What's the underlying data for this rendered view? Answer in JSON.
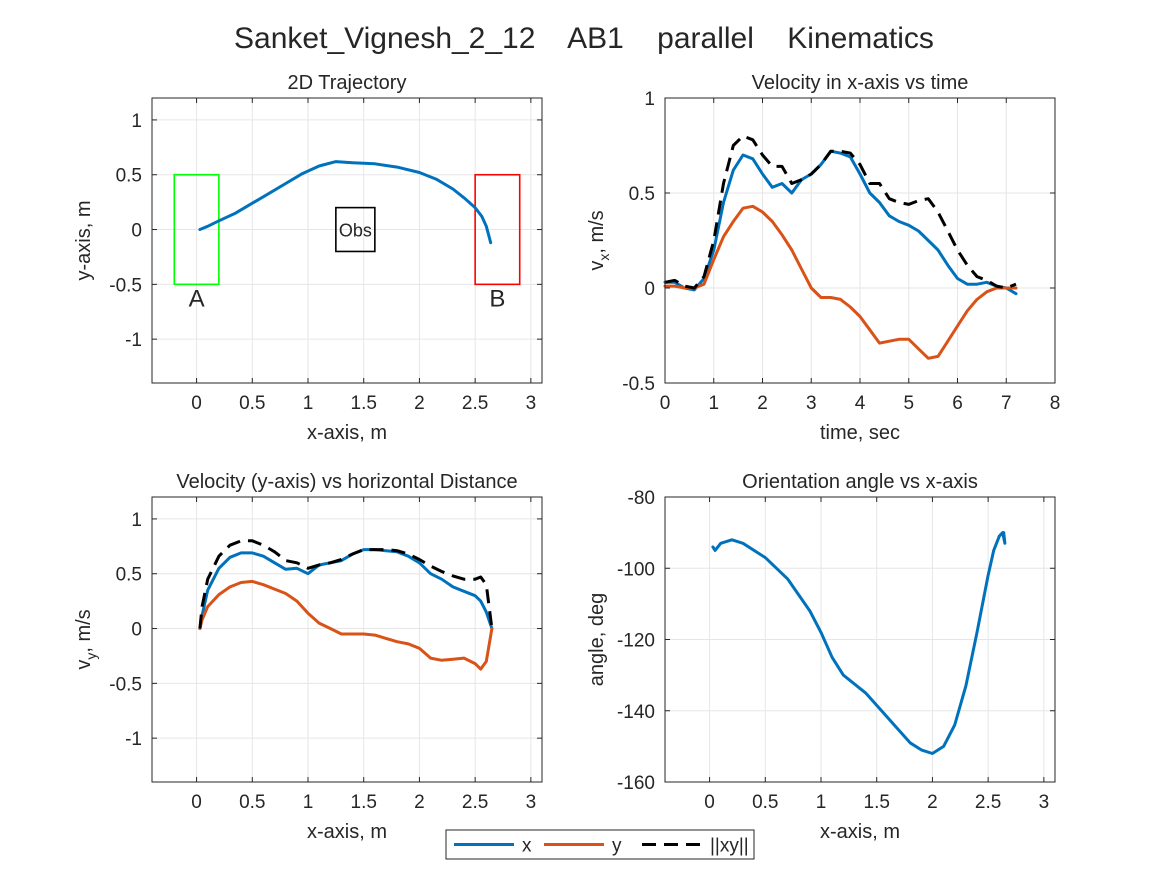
{
  "figure": {
    "title": "Sanket_Vignesh_2_12    AB1    parallel    Kinematics"
  },
  "colors": {
    "x": "#0072BD",
    "y": "#D95319",
    "xy": "#000000",
    "zoneA": "#00FF00",
    "zoneB": "#FF0000",
    "obs": "#000000"
  },
  "legend": {
    "entries": [
      {
        "label": "x",
        "color": "#0072BD",
        "dash": "solid"
      },
      {
        "label": "y",
        "color": "#D95319",
        "dash": "solid"
      },
      {
        "label": "||xy||",
        "color": "#000000",
        "dash": "dashed"
      }
    ],
    "placement": "bottom-center"
  },
  "chart_data": [
    {
      "id": "traj",
      "type": "line",
      "title": "2D Trajectory",
      "xlabel": "x-axis, m",
      "ylabel": "y-axis, m",
      "xlim": [
        -0.4,
        3.1
      ],
      "ylim": [
        -1.4,
        1.2
      ],
      "xticks": [
        0,
        0.5,
        1,
        1.5,
        2,
        2.5,
        3
      ],
      "yticks": [
        -1,
        -0.5,
        0,
        0.5,
        1
      ],
      "grid": true,
      "annotations": [
        {
          "kind": "rect",
          "name": "start-zone-A",
          "x": [
            -0.2,
            0.2
          ],
          "y": [
            -0.5,
            0.5
          ],
          "color": "#00FF00",
          "label": "A"
        },
        {
          "kind": "rect",
          "name": "goal-zone-B",
          "x": [
            2.5,
            2.9
          ],
          "y": [
            -0.5,
            0.5
          ],
          "color": "#FF0000",
          "label": "B"
        },
        {
          "kind": "rect",
          "name": "obstacle",
          "x": [
            1.25,
            1.6
          ],
          "y": [
            -0.2,
            0.2
          ],
          "color": "#000000",
          "label": "Obs"
        }
      ],
      "series": [
        {
          "key": "x",
          "x": [
            0.03,
            0.1,
            0.2,
            0.35,
            0.5,
            0.65,
            0.8,
            0.95,
            1.1,
            1.25,
            1.4,
            1.6,
            1.8,
            2.0,
            2.15,
            2.3,
            2.4,
            2.5,
            2.56,
            2.6,
            2.64
          ],
          "y": [
            0.0,
            0.03,
            0.08,
            0.15,
            0.24,
            0.33,
            0.42,
            0.51,
            0.58,
            0.62,
            0.61,
            0.6,
            0.57,
            0.52,
            0.46,
            0.37,
            0.29,
            0.2,
            0.12,
            0.03,
            -0.12
          ]
        }
      ]
    },
    {
      "id": "vx",
      "type": "line",
      "title": "Velocity in x-axis vs time",
      "xlabel": "time, sec",
      "ylabel": "v_x, m/s",
      "xlim": [
        0,
        8
      ],
      "ylim": [
        -0.5,
        1
      ],
      "xticks": [
        0,
        1,
        2,
        3,
        4,
        5,
        6,
        7,
        8
      ],
      "yticks": [
        -0.5,
        0,
        0.5,
        1
      ],
      "grid": true,
      "series": [
        {
          "key": "x",
          "x": [
            0,
            0.2,
            0.4,
            0.6,
            0.8,
            1.0,
            1.2,
            1.4,
            1.6,
            1.8,
            2.0,
            2.2,
            2.4,
            2.6,
            2.8,
            3.0,
            3.2,
            3.4,
            3.6,
            3.8,
            4.0,
            4.2,
            4.4,
            4.6,
            4.8,
            5.0,
            5.2,
            5.4,
            5.6,
            5.8,
            6.0,
            6.2,
            6.4,
            6.6,
            6.8,
            7.0,
            7.2
          ],
          "y": [
            0.03,
            0.03,
            0.0,
            -0.01,
            0.05,
            0.2,
            0.45,
            0.62,
            0.7,
            0.68,
            0.6,
            0.53,
            0.55,
            0.5,
            0.57,
            0.6,
            0.65,
            0.72,
            0.71,
            0.69,
            0.6,
            0.5,
            0.45,
            0.38,
            0.35,
            0.33,
            0.3,
            0.25,
            0.2,
            0.12,
            0.05,
            0.02,
            0.02,
            0.03,
            0.01,
            0.0,
            -0.03
          ]
        },
        {
          "key": "y",
          "x": [
            0,
            0.2,
            0.4,
            0.6,
            0.8,
            1.0,
            1.2,
            1.4,
            1.6,
            1.8,
            2.0,
            2.2,
            2.4,
            2.6,
            2.8,
            3.0,
            3.2,
            3.4,
            3.6,
            3.8,
            4.0,
            4.2,
            4.4,
            4.6,
            4.8,
            5.0,
            5.2,
            5.4,
            5.6,
            5.8,
            6.0,
            6.2,
            6.4,
            6.6,
            6.8,
            7.0,
            7.2
          ],
          "y": [
            0.01,
            0.01,
            0.0,
            0.0,
            0.02,
            0.15,
            0.27,
            0.35,
            0.42,
            0.43,
            0.4,
            0.35,
            0.28,
            0.2,
            0.1,
            0.0,
            -0.05,
            -0.05,
            -0.06,
            -0.1,
            -0.15,
            -0.22,
            -0.29,
            -0.28,
            -0.27,
            -0.27,
            -0.32,
            -0.37,
            -0.36,
            -0.28,
            -0.2,
            -0.12,
            -0.06,
            -0.02,
            0.0,
            0.0,
            0.0
          ]
        },
        {
          "key": "xy",
          "x": [
            0,
            0.2,
            0.4,
            0.6,
            0.8,
            1.0,
            1.2,
            1.4,
            1.6,
            1.8,
            2.0,
            2.2,
            2.4,
            2.6,
            2.8,
            3.0,
            3.2,
            3.4,
            3.6,
            3.8,
            4.0,
            4.2,
            4.4,
            4.6,
            4.8,
            5.0,
            5.2,
            5.4,
            5.6,
            5.8,
            6.0,
            6.2,
            6.4,
            6.6,
            6.8,
            7.0,
            7.2
          ],
          "y": [
            0.03,
            0.04,
            0.01,
            0.0,
            0.06,
            0.25,
            0.55,
            0.75,
            0.8,
            0.78,
            0.7,
            0.64,
            0.64,
            0.55,
            0.57,
            0.6,
            0.65,
            0.72,
            0.72,
            0.71,
            0.65,
            0.55,
            0.55,
            0.47,
            0.45,
            0.44,
            0.46,
            0.47,
            0.4,
            0.3,
            0.2,
            0.12,
            0.06,
            0.04,
            0.01,
            0.0,
            0.02
          ]
        }
      ]
    },
    {
      "id": "vy",
      "type": "line",
      "title": "Velocity (y-axis) vs horizontal Distance",
      "xlabel": "x-axis, m",
      "ylabel": "v_y, m/s",
      "xlim": [
        -0.4,
        3.1
      ],
      "ylim": [
        -1.4,
        1.2
      ],
      "xticks": [
        0,
        0.5,
        1,
        1.5,
        2,
        2.5,
        3
      ],
      "yticks": [
        -1,
        -0.5,
        0,
        0.5,
        1
      ],
      "grid": true,
      "series": [
        {
          "key": "x",
          "x": [
            0.03,
            0.05,
            0.1,
            0.2,
            0.3,
            0.4,
            0.5,
            0.6,
            0.7,
            0.8,
            0.9,
            1.0,
            1.1,
            1.2,
            1.3,
            1.4,
            1.5,
            1.6,
            1.7,
            1.8,
            1.9,
            2.0,
            2.1,
            2.2,
            2.3,
            2.4,
            2.5,
            2.55,
            2.6,
            2.65
          ],
          "y": [
            0.0,
            0.12,
            0.35,
            0.55,
            0.65,
            0.69,
            0.69,
            0.66,
            0.6,
            0.54,
            0.55,
            0.5,
            0.58,
            0.6,
            0.62,
            0.68,
            0.72,
            0.72,
            0.71,
            0.7,
            0.66,
            0.6,
            0.5,
            0.45,
            0.38,
            0.34,
            0.3,
            0.25,
            0.15,
            0.0
          ]
        },
        {
          "key": "y",
          "x": [
            0.03,
            0.05,
            0.1,
            0.2,
            0.3,
            0.4,
            0.5,
            0.6,
            0.7,
            0.8,
            0.9,
            1.0,
            1.1,
            1.2,
            1.3,
            1.4,
            1.5,
            1.6,
            1.7,
            1.8,
            1.9,
            2.0,
            2.1,
            2.2,
            2.3,
            2.4,
            2.5,
            2.55,
            2.6,
            2.65
          ],
          "y": [
            0.0,
            0.08,
            0.2,
            0.31,
            0.38,
            0.42,
            0.43,
            0.4,
            0.36,
            0.32,
            0.25,
            0.14,
            0.05,
            0.0,
            -0.05,
            -0.05,
            -0.05,
            -0.06,
            -0.09,
            -0.12,
            -0.14,
            -0.18,
            -0.27,
            -0.29,
            -0.28,
            -0.27,
            -0.32,
            -0.37,
            -0.3,
            0.0
          ]
        },
        {
          "key": "xy",
          "x": [
            0.03,
            0.05,
            0.1,
            0.2,
            0.3,
            0.4,
            0.5,
            0.6,
            0.7,
            0.8,
            0.9,
            1.0,
            1.1,
            1.2,
            1.3,
            1.4,
            1.5,
            1.6,
            1.7,
            1.8,
            1.9,
            2.0,
            2.1,
            2.2,
            2.3,
            2.4,
            2.5,
            2.55,
            2.6,
            2.65
          ],
          "y": [
            0.0,
            0.2,
            0.45,
            0.66,
            0.76,
            0.8,
            0.8,
            0.76,
            0.7,
            0.62,
            0.6,
            0.55,
            0.58,
            0.6,
            0.63,
            0.68,
            0.72,
            0.72,
            0.72,
            0.71,
            0.68,
            0.63,
            0.57,
            0.52,
            0.48,
            0.45,
            0.45,
            0.47,
            0.4,
            0.0
          ]
        }
      ]
    },
    {
      "id": "angle",
      "type": "line",
      "title": "Orientation angle vs x-axis",
      "xlabel": "x-axis, m",
      "ylabel": "angle, deg",
      "xlim": [
        -0.4,
        3.1
      ],
      "ylim": [
        -160,
        -80
      ],
      "xticks": [
        0,
        0.5,
        1,
        1.5,
        2,
        2.5,
        3
      ],
      "yticks": [
        -160,
        -140,
        -120,
        -100,
        -80
      ],
      "grid": true,
      "series": [
        {
          "key": "x",
          "x": [
            0.03,
            0.05,
            0.1,
            0.2,
            0.3,
            0.5,
            0.7,
            0.9,
            1.0,
            1.1,
            1.2,
            1.4,
            1.6,
            1.8,
            1.9,
            2.0,
            2.1,
            2.2,
            2.3,
            2.4,
            2.5,
            2.55,
            2.6,
            2.63,
            2.65,
            2.64
          ],
          "y": [
            -94,
            -95,
            -93,
            -92,
            -93,
            -97,
            -103,
            -112,
            -118,
            -125,
            -130,
            -135,
            -142,
            -149,
            -151,
            -152,
            -150,
            -144,
            -133,
            -118,
            -102,
            -95,
            -91,
            -90,
            -93,
            -90
          ]
        }
      ]
    }
  ]
}
